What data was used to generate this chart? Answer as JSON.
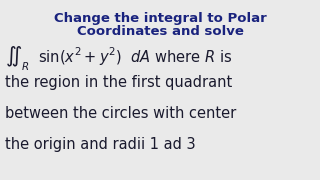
{
  "title_line1": "Change the integral to Polar",
  "title_line2": "Coordinates and solve",
  "title_color": "#1a237e",
  "title_fontsize": 9.5,
  "body_fontsize": 10.5,
  "body_color": "#1a1a2e",
  "math_line": "$\\iint_R\\ \\ \\sin(x^2 + y^2)\\ \\ dA$ where $R$ is",
  "text_line2": "the region in the first quadrant",
  "text_line3": "between the circles with center",
  "text_line4": "the origin and radii 1 ad 3",
  "bg_color": "#eaeaea"
}
